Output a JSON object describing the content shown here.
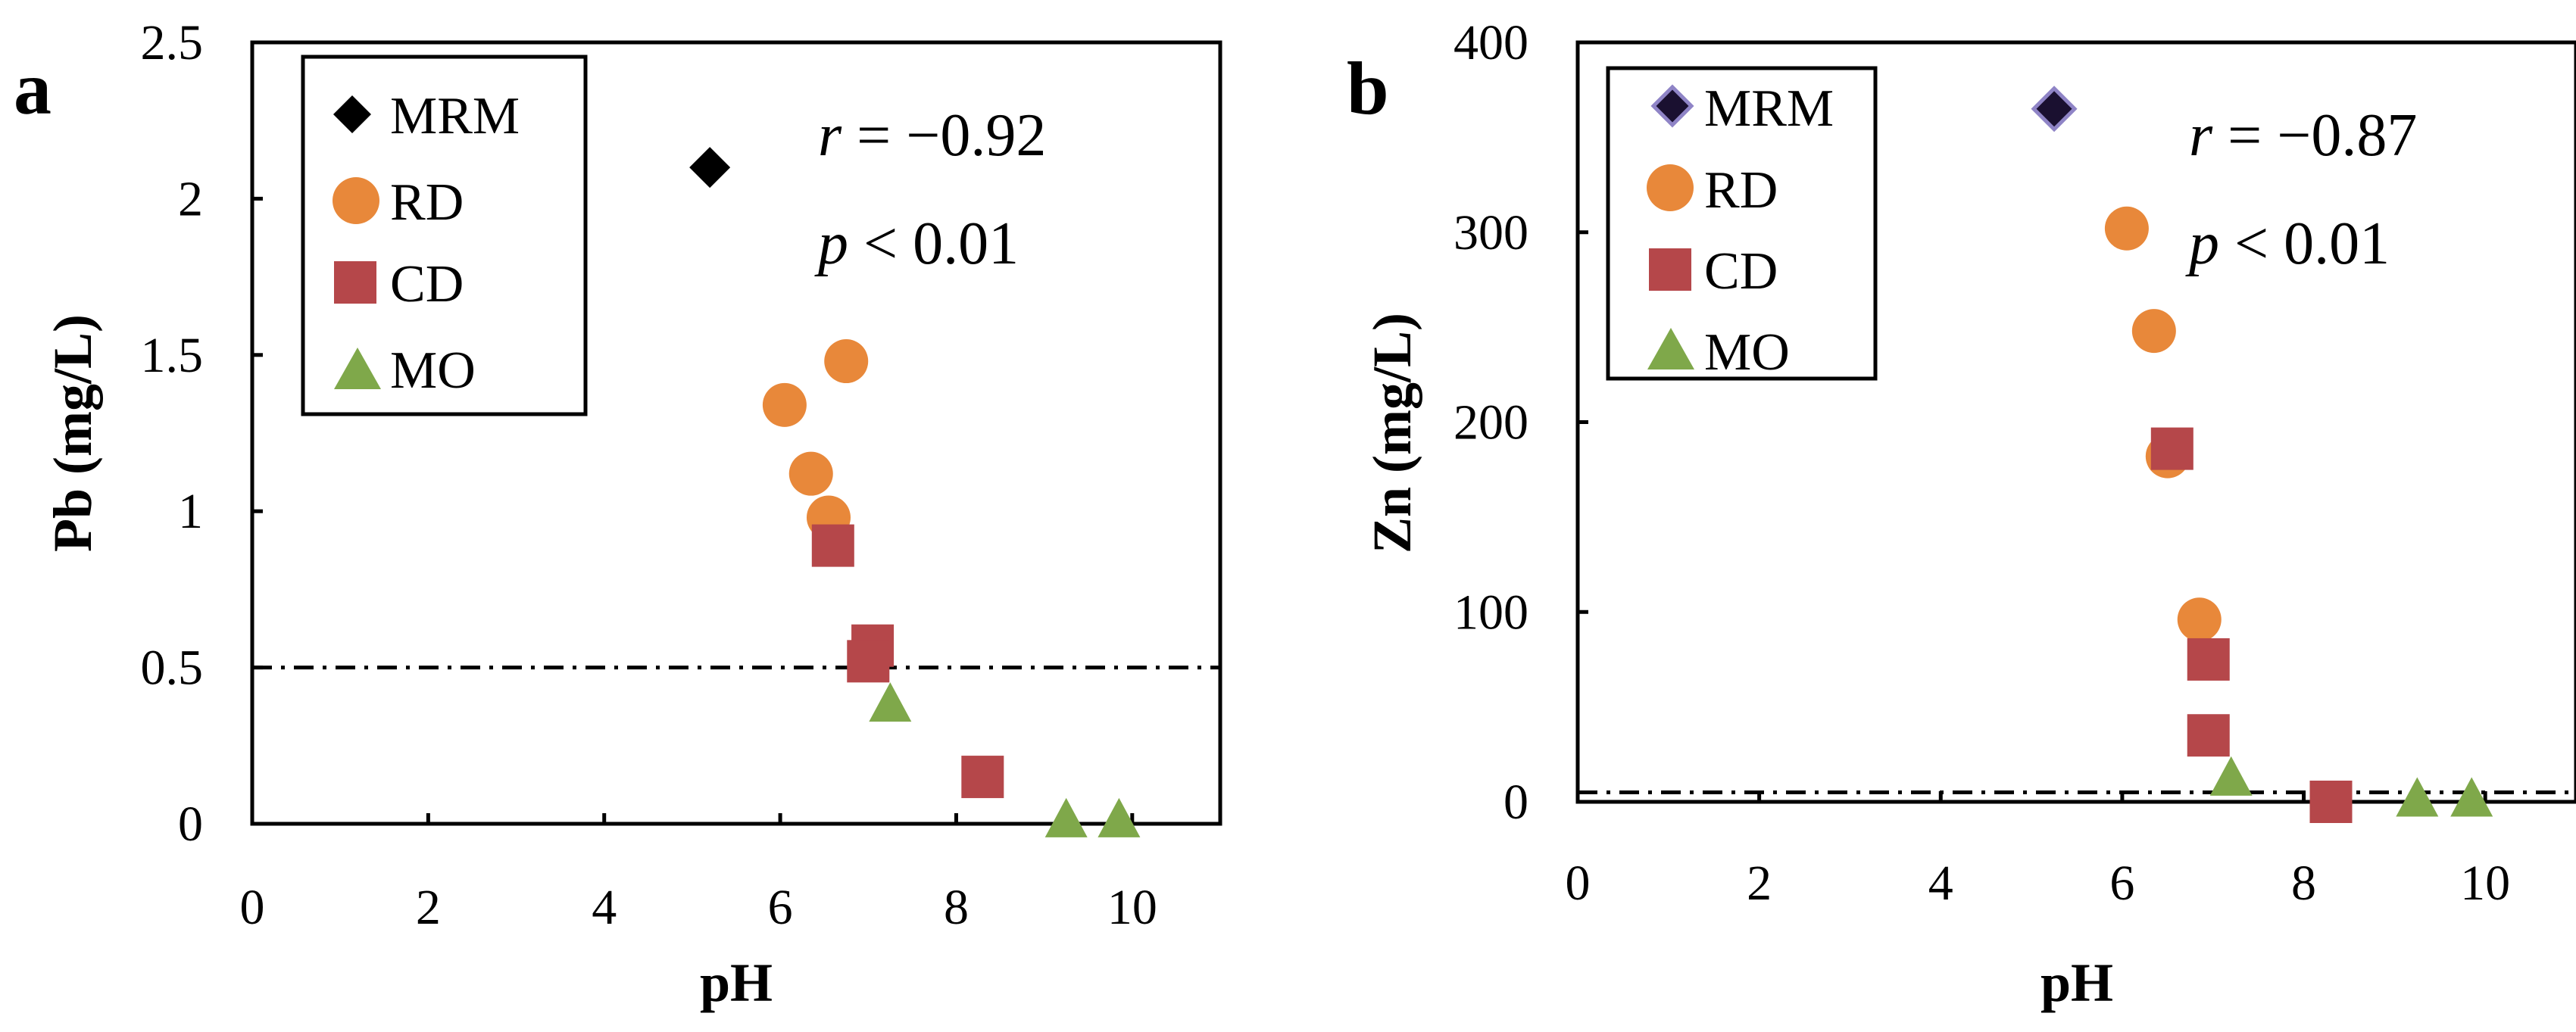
{
  "chart_data": [
    {
      "type": "scatter",
      "panel_label": "a",
      "xlabel": "pH",
      "ylabel": "Pb (mg/L)",
      "xlim": [
        0,
        11
      ],
      "ylim": [
        0,
        2.5
      ],
      "x_ticks": [
        0,
        2,
        4,
        6,
        8,
        10
      ],
      "x_tick_labels": [
        "0",
        "2",
        "4",
        "6",
        "8",
        "10"
      ],
      "y_ticks": [
        0,
        0.5,
        1,
        1.5,
        2,
        2.5
      ],
      "y_tick_labels": [
        "0",
        "0.5",
        "1",
        "1.5",
        "2",
        "2.5"
      ],
      "reference_line": {
        "y": 0.5,
        "style": "dash-dot"
      },
      "stats": {
        "r_label": "r",
        "r_value": " = −0.92",
        "p_label": "p",
        "p_value": " < 0.01"
      },
      "legend_position": "top-left",
      "series": [
        {
          "name": "MRM",
          "marker": "diamond",
          "color": "#000000",
          "points": [
            {
              "x": 5.2,
              "y": 2.1
            }
          ]
        },
        {
          "name": "RD",
          "marker": "circle",
          "color": "#E8883A",
          "points": [
            {
              "x": 6.05,
              "y": 1.34
            },
            {
              "x": 6.75,
              "y": 1.48
            },
            {
              "x": 6.35,
              "y": 1.12
            },
            {
              "x": 6.55,
              "y": 0.98
            }
          ]
        },
        {
          "name": "CD",
          "marker": "square",
          "color": "#B5474A",
          "points": [
            {
              "x": 6.6,
              "y": 0.89
            },
            {
              "x": 7.05,
              "y": 0.57
            },
            {
              "x": 7.0,
              "y": 0.52
            },
            {
              "x": 8.3,
              "y": 0.15
            }
          ]
        },
        {
          "name": "MO",
          "marker": "triangle",
          "color": "#7FA84A",
          "points": [
            {
              "x": 7.25,
              "y": 0.38
            },
            {
              "x": 9.25,
              "y": 0.01
            },
            {
              "x": 9.85,
              "y": 0.01
            }
          ]
        }
      ]
    },
    {
      "type": "scatter",
      "panel_label": "b",
      "xlabel": "pH",
      "ylabel": "Zn (mg/L)",
      "xlim": [
        0,
        11
      ],
      "ylim": [
        0,
        400
      ],
      "x_ticks": [
        0,
        2,
        4,
        6,
        8,
        10
      ],
      "x_tick_labels": [
        "0",
        "2",
        "4",
        "6",
        "8",
        "10"
      ],
      "y_ticks": [
        0,
        100,
        200,
        300,
        400
      ],
      "y_tick_labels": [
        "0",
        "100",
        "200",
        "300",
        "400"
      ],
      "reference_line": {
        "y": 5,
        "style": "dash-dot"
      },
      "stats": {
        "r_label": "r",
        "r_value": " = −0.87",
        "p_label": "p",
        "p_value": " < 0.01"
      },
      "legend_position": "top-left",
      "series": [
        {
          "name": "MRM",
          "marker": "diamond",
          "color": "#1a1030",
          "points": [
            {
              "x": 5.25,
              "y": 365
            }
          ]
        },
        {
          "name": "RD",
          "marker": "circle",
          "color": "#E8883A",
          "points": [
            {
              "x": 6.05,
              "y": 302
            },
            {
              "x": 6.35,
              "y": 248
            },
            {
              "x": 6.5,
              "y": 182
            },
            {
              "x": 6.85,
              "y": 96
            }
          ]
        },
        {
          "name": "CD",
          "marker": "square",
          "color": "#B5474A",
          "points": [
            {
              "x": 6.55,
              "y": 186
            },
            {
              "x": 6.95,
              "y": 75
            },
            {
              "x": 6.95,
              "y": 35
            },
            {
              "x": 8.3,
              "y": 0
            }
          ]
        },
        {
          "name": "MO",
          "marker": "triangle",
          "color": "#7FA84A",
          "points": [
            {
              "x": 7.2,
              "y": 12
            },
            {
              "x": 9.25,
              "y": 1
            },
            {
              "x": 9.85,
              "y": 1
            }
          ]
        }
      ]
    }
  ]
}
